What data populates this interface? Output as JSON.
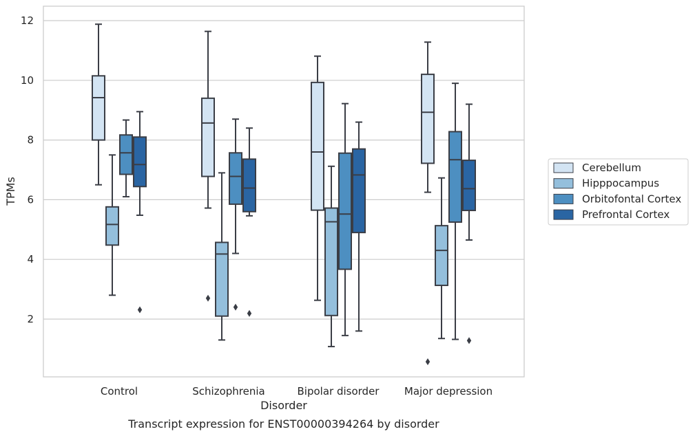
{
  "chart_data": {
    "type": "box",
    "title": "",
    "caption": "Transcript expression for ENST00000394264 by disorder",
    "xlabel": "Disorder",
    "ylabel": "TPMs",
    "ylim": [
      0,
      12.45
    ],
    "yticks": [
      "2",
      "4",
      "6",
      "8",
      "10",
      "12"
    ],
    "ytick_values": [
      2,
      4,
      6,
      8,
      10,
      12
    ],
    "grid": "horizontal",
    "legend_position": "right",
    "categories": [
      "Control",
      "Schizophrenia",
      "Bipolar disorder",
      "Major depression"
    ],
    "series": [
      {
        "name": "Cerebellum",
        "color": "#d3e4f3",
        "boxes": [
          {
            "whislo": 6.5,
            "q1": 8.0,
            "med": 9.42,
            "q3": 10.15,
            "whishi": 11.88,
            "fliers": []
          },
          {
            "whislo": 5.72,
            "q1": 6.78,
            "med": 8.57,
            "q3": 9.4,
            "whishi": 11.64,
            "fliers": [
              2.7
            ]
          },
          {
            "whislo": 2.63,
            "q1": 5.65,
            "med": 7.6,
            "q3": 9.93,
            "whishi": 10.81,
            "fliers": []
          },
          {
            "whislo": 6.25,
            "q1": 7.22,
            "med": 8.93,
            "q3": 10.2,
            "whishi": 11.28,
            "fliers": [
              0.57
            ]
          }
        ]
      },
      {
        "name": "Hipppocampus",
        "color": "#94bfdc",
        "boxes": [
          {
            "whislo": 2.8,
            "q1": 4.48,
            "med": 5.17,
            "q3": 5.76,
            "whishi": 7.5,
            "fliers": []
          },
          {
            "whislo": 1.3,
            "q1": 2.1,
            "med": 4.18,
            "q3": 4.57,
            "whishi": 6.9,
            "fliers": []
          },
          {
            "whislo": 1.08,
            "q1": 2.12,
            "med": 5.26,
            "q3": 5.72,
            "whishi": 7.12,
            "fliers": []
          },
          {
            "whislo": 1.35,
            "q1": 3.13,
            "med": 4.3,
            "q3": 5.13,
            "whishi": 6.73,
            "fliers": []
          }
        ]
      },
      {
        "name": "Orbitofontal Cortex",
        "color": "#4d8fc1",
        "boxes": [
          {
            "whislo": 6.1,
            "q1": 6.85,
            "med": 7.57,
            "q3": 8.17,
            "whishi": 8.67,
            "fliers": []
          },
          {
            "whislo": 4.2,
            "q1": 5.85,
            "med": 6.78,
            "q3": 7.57,
            "whishi": 8.7,
            "fliers": [
              2.4
            ]
          },
          {
            "whislo": 1.45,
            "q1": 3.67,
            "med": 5.52,
            "q3": 7.56,
            "whishi": 9.22,
            "fliers": []
          },
          {
            "whislo": 1.32,
            "q1": 5.25,
            "med": 7.34,
            "q3": 8.28,
            "whishi": 9.9,
            "fliers": []
          }
        ]
      },
      {
        "name": "Prefrontal Cortex",
        "color": "#2a65a3",
        "boxes": [
          {
            "whislo": 5.48,
            "q1": 6.44,
            "med": 7.18,
            "q3": 8.1,
            "whishi": 8.95,
            "fliers": [
              2.31
            ]
          },
          {
            "whislo": 5.46,
            "q1": 5.6,
            "med": 6.39,
            "q3": 7.36,
            "whishi": 8.4,
            "fliers": [
              2.19
            ]
          },
          {
            "whislo": 1.6,
            "q1": 4.9,
            "med": 6.83,
            "q3": 7.7,
            "whishi": 8.6,
            "fliers": []
          },
          {
            "whislo": 4.65,
            "q1": 5.64,
            "med": 6.37,
            "q3": 7.32,
            "whishi": 9.2,
            "fliers": [
              1.28
            ]
          }
        ]
      }
    ]
  }
}
